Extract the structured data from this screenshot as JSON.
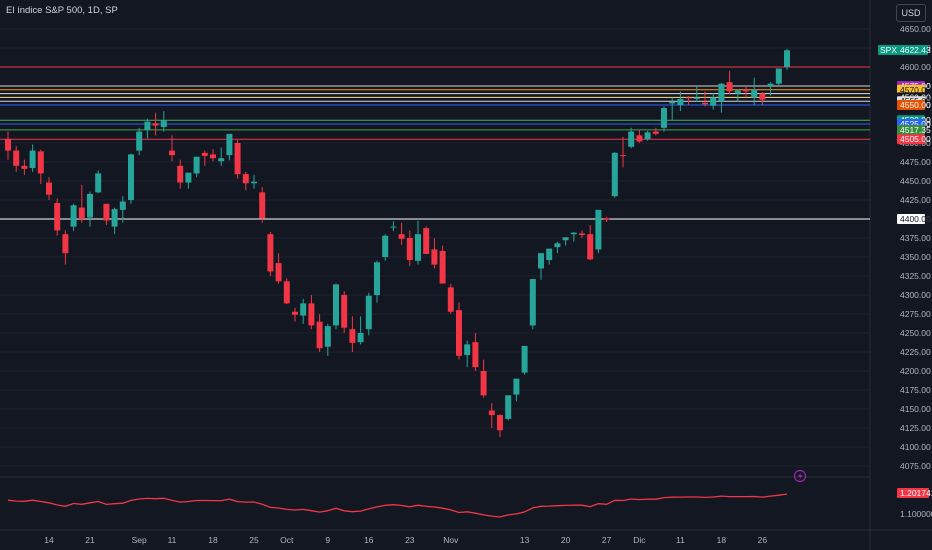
{
  "header": {
    "title": "El índice S&P 500, 1D, SP",
    "currency": "USD"
  },
  "colors": {
    "background": "#131722",
    "up": "#26a69a",
    "down": "#f23645",
    "grid": "#1e222d",
    "axis_text": "#b2b5be",
    "indicator": "#f23645"
  },
  "last_price": {
    "label": "SPX",
    "value": "4622.43",
    "color": "#089981"
  },
  "indicator": {
    "value": "1.201741",
    "tick": "1.100000"
  },
  "chart_data": {
    "type": "candlestick",
    "y_ticks": [
      "4650.00",
      "4625.00",
      "4600.00",
      "4575.00",
      "4550.00",
      "4525.00",
      "4500.00",
      "4475.00",
      "4450.00",
      "4425.00",
      "4400.00",
      "4375.00",
      "4350.00",
      "4325.00",
      "4300.00",
      "4275.00",
      "4250.00",
      "4225.00",
      "4200.00",
      "4175.00",
      "4150.00",
      "4125.00",
      "4100.00",
      "4075.00"
    ],
    "x_ticks": [
      {
        "label": "14",
        "pos": 5
      },
      {
        "label": "21",
        "pos": 10
      },
      {
        "label": "Sep",
        "pos": 16
      },
      {
        "label": "11",
        "pos": 20
      },
      {
        "label": "18",
        "pos": 25
      },
      {
        "label": "25",
        "pos": 30
      },
      {
        "label": "Oct",
        "pos": 34
      },
      {
        "label": "9",
        "pos": 39
      },
      {
        "label": "16",
        "pos": 44
      },
      {
        "label": "23",
        "pos": 49
      },
      {
        "label": "Nov",
        "pos": 54
      },
      {
        "label": "13",
        "pos": 63
      },
      {
        "label": "20",
        "pos": 68
      },
      {
        "label": "27",
        "pos": 73
      },
      {
        "label": "Dic",
        "pos": 77
      },
      {
        "label": "11",
        "pos": 82
      },
      {
        "label": "18",
        "pos": 87
      },
      {
        "label": "26",
        "pos": 92
      }
    ],
    "ylim": [
      4060,
      4660
    ],
    "levels": [
      {
        "value": 4600,
        "color": "#f23645",
        "label": ""
      },
      {
        "value": 4575,
        "color": "#d1d4dc",
        "label": "4575.00",
        "tag_color": "#9c27b0"
      },
      {
        "value": 4570,
        "color": "#ff9800",
        "label": "4570.00",
        "tag_color": "#fbc02d"
      },
      {
        "value": 4565,
        "color": "#e0e0e0",
        "label": "",
        "tag_color": ""
      },
      {
        "value": 4560,
        "color": "#ffe082",
        "label": "4560.00",
        "tag_color": "#131722"
      },
      {
        "value": 4555,
        "color": "#d1d4dc",
        "label": "4555.00",
        "tag_color": "#e0e0e0"
      },
      {
        "value": 4550,
        "color": "#2962ff",
        "label": "4550.00",
        "tag_color": "#e65100"
      },
      {
        "value": 4530,
        "color": "#4caf50",
        "label": "4530.00",
        "tag_color": "#089981"
      },
      {
        "value": 4525,
        "color": "#2962ff",
        "label": "4525.00",
        "tag_color": "#2962ff"
      },
      {
        "value": 4517.35,
        "color": "#43a047",
        "label": "4517.35",
        "tag_color": "#388e3c"
      },
      {
        "value": 4505,
        "color": "#f23645",
        "label": "4505.00",
        "tag_color": "#f23645"
      },
      {
        "value": 4400,
        "color": "#ffffff",
        "label": "4400.00",
        "tag_color": "#ffffff"
      }
    ],
    "candles": [
      [
        4505,
        4515,
        4478,
        4490
      ],
      [
        4490,
        4496,
        4462,
        4470
      ],
      [
        4470,
        4478,
        4458,
        4466
      ],
      [
        4467,
        4498,
        4462,
        4490
      ],
      [
        4489,
        4491,
        4446,
        4460
      ],
      [
        4448,
        4455,
        4425,
        4432
      ],
      [
        4421,
        4427,
        4378,
        4385
      ],
      [
        4380,
        4385,
        4340,
        4355
      ],
      [
        4390,
        4420,
        4384,
        4418
      ],
      [
        4415,
        4445,
        4395,
        4400
      ],
      [
        4402,
        4436,
        4390,
        4433
      ],
      [
        4435,
        4464,
        4434,
        4460
      ],
      [
        4420,
        4418,
        4392,
        4398
      ],
      [
        4390,
        4415,
        4380,
        4413
      ],
      [
        4412,
        4430,
        4395,
        4423
      ],
      [
        4425,
        4486,
        4420,
        4485
      ],
      [
        4490,
        4520,
        4484,
        4515
      ],
      [
        4517,
        4532,
        4506,
        4528
      ],
      [
        4526,
        4540,
        4510,
        4523
      ],
      [
        4521,
        4542,
        4515,
        4530
      ],
      [
        4490,
        4510,
        4476,
        4484
      ],
      [
        4470,
        4478,
        4440,
        4448
      ],
      [
        4448,
        4460,
        4440,
        4461
      ],
      [
        4460,
        4480,
        4455,
        4482
      ],
      [
        4487,
        4490,
        4470,
        4483
      ],
      [
        4485,
        4492,
        4476,
        4480
      ],
      [
        4476,
        4494,
        4470,
        4480
      ],
      [
        4484,
        4512,
        4477,
        4512
      ],
      [
        4500,
        4504,
        4453,
        4459
      ],
      [
        4459,
        4462,
        4438,
        4447
      ],
      [
        4447,
        4458,
        4440,
        4449
      ],
      [
        4435,
        4442,
        4395,
        4401
      ],
      [
        4380,
        4383,
        4325,
        4331
      ],
      [
        4342,
        4355,
        4315,
        4318
      ],
      [
        4318,
        4322,
        4288,
        4289
      ],
      [
        4278,
        4283,
        4265,
        4274
      ],
      [
        4273,
        4295,
        4262,
        4289
      ],
      [
        4289,
        4300,
        4255,
        4260
      ],
      [
        4265,
        4275,
        4225,
        4230
      ],
      [
        4232,
        4262,
        4220,
        4259
      ],
      [
        4260,
        4315,
        4255,
        4314
      ],
      [
        4300,
        4305,
        4250,
        4257
      ],
      [
        4255,
        4272,
        4225,
        4237
      ],
      [
        4238,
        4272,
        4235,
        4250
      ],
      [
        4255,
        4303,
        4247,
        4299
      ],
      [
        4300,
        4345,
        4290,
        4343
      ],
      [
        4350,
        4380,
        4345,
        4378
      ],
      [
        4390,
        4397,
        4384,
        4390
      ],
      [
        4380,
        4395,
        4366,
        4374
      ],
      [
        4375,
        4385,
        4338,
        4346
      ],
      [
        4345,
        4398,
        4340,
        4380
      ],
      [
        4388,
        4390,
        4354,
        4354
      ],
      [
        4360,
        4375,
        4335,
        4340
      ],
      [
        4358,
        4365,
        4315,
        4315
      ],
      [
        4310,
        4315,
        4275,
        4278
      ],
      [
        4280,
        4290,
        4215,
        4220
      ],
      [
        4221,
        4240,
        4205,
        4235
      ],
      [
        4238,
        4250,
        4200,
        4205
      ],
      [
        4200,
        4215,
        4165,
        4168
      ],
      [
        4148,
        4158,
        4125,
        4142
      ],
      [
        4142,
        4143,
        4113,
        4122
      ],
      [
        4137,
        4165,
        4135,
        4168
      ],
      [
        4169,
        4185,
        4160,
        4190
      ],
      [
        4198,
        4230,
        4195,
        4233
      ],
      [
        4260,
        4320,
        4255,
        4321
      ],
      [
        4335,
        4350,
        4320,
        4355
      ],
      [
        4346,
        4360,
        4340,
        4361
      ],
      [
        4363,
        4370,
        4355,
        4368
      ],
      [
        4372,
        4375,
        4365,
        4376
      ],
      [
        4380,
        4383,
        4370,
        4382
      ],
      [
        4381,
        4385,
        4375,
        4379
      ],
      [
        4380,
        4392,
        4346,
        4347
      ],
      [
        4360,
        4412,
        4355,
        4412
      ],
      [
        4401,
        4403,
        4396,
        4399
      ],
      [
        4430,
        4488,
        4428,
        4487
      ],
      [
        4484,
        4508,
        4468,
        4483
      ],
      [
        4495,
        4520,
        4493,
        4515
      ],
      [
        4510,
        4517,
        4500,
        4502
      ],
      [
        4505,
        4516,
        4503,
        4514
      ],
      [
        4515,
        4520,
        4510,
        4512
      ],
      [
        4520,
        4548,
        4515,
        4546
      ],
      [
        4552,
        4560,
        4530,
        4554
      ],
      [
        4550,
        4568,
        4542,
        4558
      ],
      [
        4560,
        4562,
        4550,
        4559
      ],
      [
        4558,
        4575,
        4554,
        4560
      ],
      [
        4553,
        4568,
        4548,
        4551
      ],
      [
        4549,
        4566,
        4544,
        4560
      ],
      [
        4555,
        4579,
        4540,
        4578
      ],
      [
        4580,
        4595,
        4564,
        4568
      ],
      [
        4565,
        4570,
        4555,
        4569
      ],
      [
        4570,
        4575,
        4560,
        4568
      ],
      [
        4560,
        4586,
        4550,
        4570
      ],
      [
        4565,
        4567,
        4550,
        4557
      ],
      [
        4575,
        4580,
        4562,
        4578
      ],
      [
        4578,
        4598,
        4575,
        4598
      ],
      [
        4600,
        4624,
        4596,
        4622
      ]
    ]
  }
}
